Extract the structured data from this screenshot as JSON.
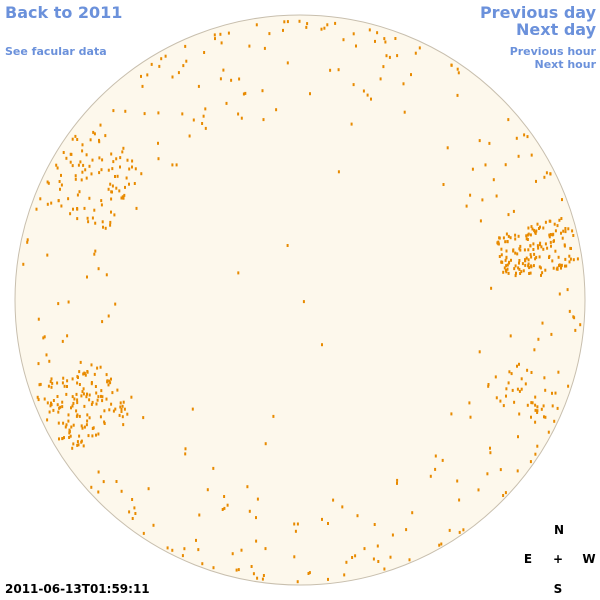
{
  "links": {
    "back": "Back to 2011",
    "facular": "See facular data",
    "previous_day": "Previous day",
    "next_day": "Next day",
    "previous_hour": "Previous hour",
    "next_hour": "Next hour"
  },
  "timestamp": "2011-06-13T01:59:11",
  "compass": {
    "north": "N",
    "east": "E",
    "center": "+",
    "west": "W",
    "south": "S"
  }
}
